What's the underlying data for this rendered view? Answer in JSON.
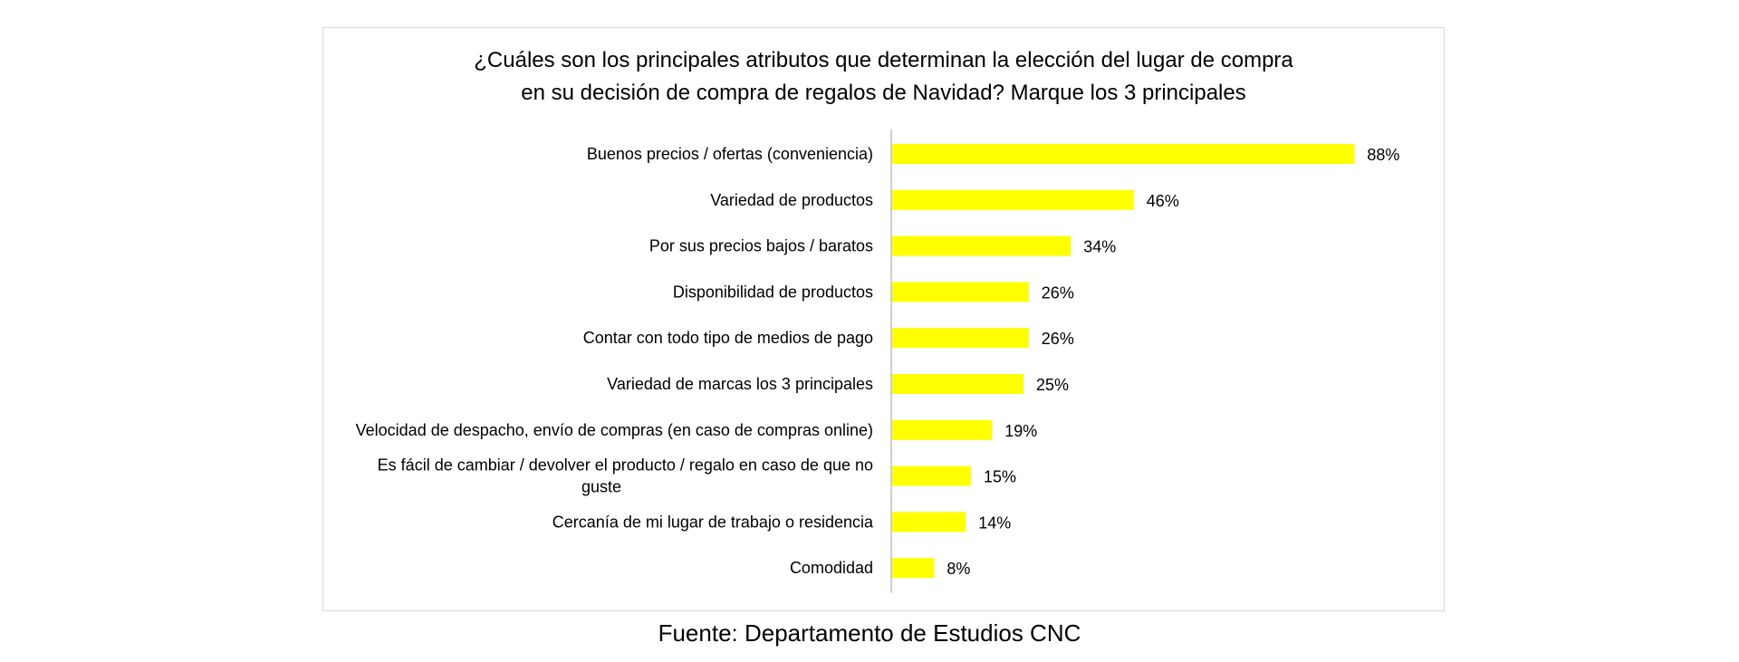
{
  "chart_data": {
    "type": "bar",
    "orientation": "horizontal",
    "title": [
      "¿Cuáles son los principales atributos que determinan la elección del lugar de compra",
      "en su decisión de compra de regalos de Navidad? Marque los 3 principales"
    ],
    "categories": [
      [
        "Buenos precios / ofertas (conveniencia)"
      ],
      [
        "Variedad de productos"
      ],
      [
        "Por sus precios bajos / baratos"
      ],
      [
        "Disponibilidad de productos"
      ],
      [
        "Contar con todo tipo de medios de pago"
      ],
      [
        "Variedad de marcas los 3 principales"
      ],
      [
        "Velocidad de despacho, envío de compras (en caso de compras online)"
      ],
      [
        "Es fácil de cambiar / devolver el producto / regalo en caso de que no",
        "guste"
      ],
      [
        "Cercanía de mi lugar de trabajo o residencia"
      ],
      [
        "Comodidad"
      ]
    ],
    "values": [
      88,
      46,
      34,
      26,
      26,
      25,
      19,
      15,
      14,
      8
    ],
    "value_suffix": "%",
    "xlim": [
      0,
      100
    ],
    "grid": false,
    "legend": "none",
    "bar_color": "#ffff00",
    "axis_color": "#bfbfbf"
  },
  "source": "Fuente: Departamento de Estudios CNC"
}
